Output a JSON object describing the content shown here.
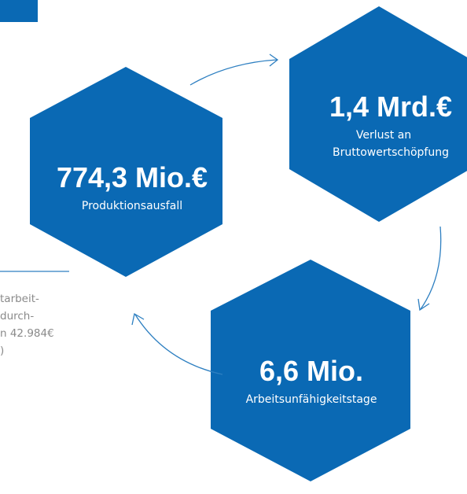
{
  "hexagons": [
    {
      "value": "774,3 Mio.€",
      "label": "Produktionsausfall"
    },
    {
      "value": "1,4 Mrd.€",
      "label_lines": [
        "Verlust an",
        "Bruttowertschöpfung"
      ]
    },
    {
      "value": "6,6 Mio.",
      "label": "Arbeitsunfähigkeitstage"
    }
  ],
  "side_text": [
    "tarbeit-",
    "durch-",
    "n 42.984€",
    ")"
  ]
}
